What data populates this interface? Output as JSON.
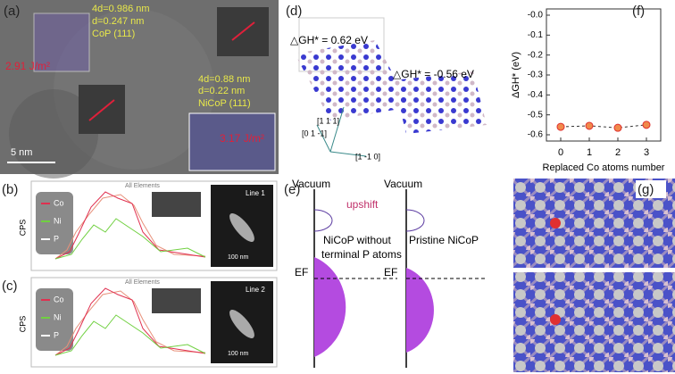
{
  "panel_a": {
    "label": "(a)",
    "cop_annotation": [
      "4d=0.986 nm",
      "d=0.247 nm",
      "CoP (111)"
    ],
    "nicop_annotation": [
      "4d=0.88 nm",
      "d=0.22 nm",
      "NiCoP (111)"
    ],
    "cop_energy": "2.91 J/m²",
    "nicop_energy": "3.17 J/m²",
    "scale_bar": "5 nm"
  },
  "panel_b": {
    "label": "(b)",
    "legend": [
      "Co",
      "Ni",
      "P"
    ],
    "y_label": "CPS",
    "plot_title": "All Elements",
    "inset_label": "Line 1",
    "inset_scale": "100 nm"
  },
  "panel_c": {
    "label": "(c)",
    "legend": [
      "Co",
      "Ni",
      "P"
    ],
    "y_label": "CPS",
    "plot_title": "All Elements",
    "inset_label": "Line 2",
    "inset_scale": "100 nm"
  },
  "panel_d": {
    "label": "(d)",
    "energy_left": "△GH* = 0.62 eV",
    "energy_right": "△GH* = -0.56 eV",
    "directions": [
      "[1 1 1]",
      "[0 1 -1]",
      "[1 -1 0]"
    ]
  },
  "panel_e": {
    "label": "(e)",
    "vacuum_left": "Vacuum",
    "vacuum_right": "Vacuum",
    "shift": "upshift",
    "caption_left": [
      "NiCoP without",
      "terminal P atoms"
    ],
    "caption_right": "Pristine NiCoP",
    "fermi_left": "EF",
    "fermi_right": "EF"
  },
  "panel_f": {
    "type": "scatter",
    "label": "(f)",
    "x_label": "Replaced Co atoms number",
    "y_label": "ΔGH* (eV)",
    "x": [
      0,
      1,
      2,
      3
    ],
    "values": [
      -0.56,
      -0.555,
      -0.565,
      -0.55
    ],
    "xlim": [
      -0.5,
      3.5
    ],
    "xticks": [
      0,
      1,
      2,
      3
    ],
    "ylim": [
      -0.6,
      0
    ],
    "y_inverted": true,
    "yticks": [
      {
        "value": 0,
        "label": "-0.0"
      },
      -0.1,
      -0.2,
      -0.3,
      -0.4,
      -0.5,
      -0.6
    ],
    "color": "#f08a4b",
    "line_style": "dashed"
  },
  "panel_g": {
    "label": "(g)"
  }
}
